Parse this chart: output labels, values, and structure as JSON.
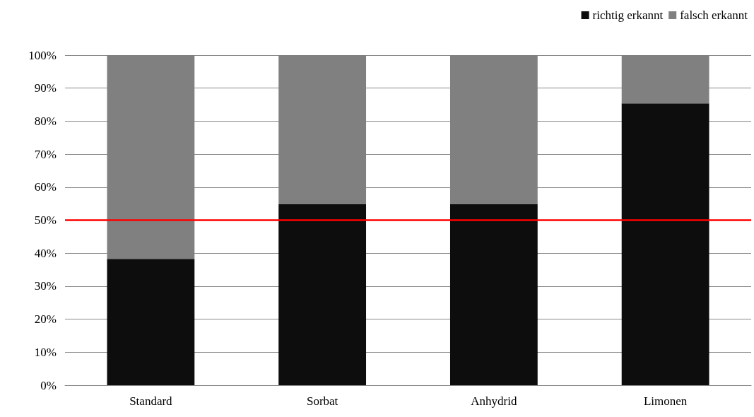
{
  "chart_data": {
    "type": "bar",
    "stacked": true,
    "categories": [
      "Standard",
      "Sorbat",
      "Anhydrid",
      "Limonen"
    ],
    "series": [
      {
        "name": "richtig erkannt",
        "color": "#0d0d0d",
        "values": [
          38.3,
          54.8,
          54.8,
          85.4
        ]
      },
      {
        "name": "falsch erkannt",
        "color": "#808080",
        "values": [
          61.7,
          45.2,
          45.2,
          14.6
        ]
      }
    ],
    "ylim": [
      0,
      100
    ],
    "yticks": [
      {
        "value": 0,
        "label": "0%"
      },
      {
        "value": 10,
        "label": "10%"
      },
      {
        "value": 20,
        "label": "20%"
      },
      {
        "value": 30,
        "label": "30%"
      },
      {
        "value": 40,
        "label": "40%"
      },
      {
        "value": 50,
        "label": "50%"
      },
      {
        "value": 60,
        "label": "60%"
      },
      {
        "value": 70,
        "label": "70%"
      },
      {
        "value": 80,
        "label": "80%"
      },
      {
        "value": 90,
        "label": "90%"
      },
      {
        "value": 100,
        "label": "100%"
      }
    ],
    "grid": "y",
    "legend": "top right",
    "ref_lines": [
      {
        "axis": "y",
        "value": 50,
        "color": "#ff0000",
        "line_style": "solid"
      }
    ]
  }
}
